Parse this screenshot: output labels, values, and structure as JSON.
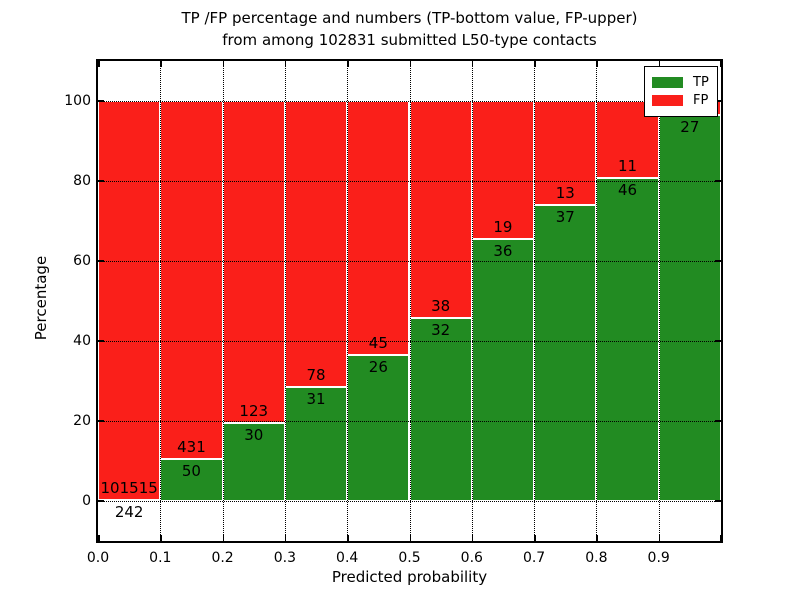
{
  "title": {
    "line1": "TP /FP percentage and numbers (TP-bottom value, FP-upper)",
    "line2": "from among 102831 submitted L50-type contacts"
  },
  "axes": {
    "xlabel": "Predicted probability",
    "ylabel": "Percentage",
    "x_tick_labels": [
      "0.0",
      "0.1",
      "0.2",
      "0.3",
      "0.4",
      "0.5",
      "0.6",
      "0.7",
      "0.8",
      "0.9"
    ],
    "y_tick_labels": [
      "0",
      "20",
      "40",
      "60",
      "80",
      "100"
    ],
    "y_tick_values": [
      0,
      20,
      40,
      60,
      80,
      100
    ],
    "xlim": [
      0.0,
      1.0
    ],
    "ylim": [
      -10,
      110
    ],
    "grid": true
  },
  "legend": [
    {
      "label": "TP",
      "color": "#228b22"
    },
    {
      "label": "FP",
      "color": "#fa1f1a"
    }
  ],
  "colors": {
    "tp_green": "#228b22",
    "fp_red": "#fa1f1a",
    "spine": "#000000",
    "background": "#ffffff"
  },
  "chart_data": {
    "type": "bar",
    "stacked": true,
    "normalized_to_percent": 100,
    "title": "TP /FP percentage and numbers (TP-bottom value, FP-upper) from among 102831 submitted L50-type contacts",
    "total_contacts": 102831,
    "xlabel": "Predicted probability",
    "ylabel": "Percentage",
    "categories": [
      "0.0-0.1",
      "0.1-0.2",
      "0.2-0.3",
      "0.3-0.4",
      "0.4-0.5",
      "0.5-0.6",
      "0.6-0.7",
      "0.7-0.8",
      "0.8-0.9",
      "0.9-1.0"
    ],
    "series": [
      {
        "name": "TP",
        "values": [
          242,
          50,
          30,
          31,
          26,
          32,
          36,
          37,
          46,
          27
        ]
      },
      {
        "name": "FP",
        "values": [
          101515,
          431,
          123,
          78,
          45,
          38,
          19,
          13,
          11,
          1
        ]
      }
    ],
    "bars": [
      {
        "x0": 0.0,
        "x1": 0.1,
        "tp": 242,
        "fp": 101515,
        "tp_label": "242",
        "fp_label": "101515"
      },
      {
        "x0": 0.1,
        "x1": 0.2,
        "tp": 50,
        "fp": 431,
        "tp_label": "50",
        "fp_label": "431"
      },
      {
        "x0": 0.2,
        "x1": 0.3,
        "tp": 30,
        "fp": 123,
        "tp_label": "30",
        "fp_label": "123"
      },
      {
        "x0": 0.3,
        "x1": 0.4,
        "tp": 31,
        "fp": 78,
        "tp_label": "31",
        "fp_label": "78"
      },
      {
        "x0": 0.4,
        "x1": 0.5,
        "tp": 26,
        "fp": 45,
        "tp_label": "26",
        "fp_label": "45"
      },
      {
        "x0": 0.5,
        "x1": 0.6,
        "tp": 32,
        "fp": 38,
        "tp_label": "32",
        "fp_label": "38"
      },
      {
        "x0": 0.6,
        "x1": 0.7,
        "tp": 36,
        "fp": 19,
        "tp_label": "36",
        "fp_label": "19"
      },
      {
        "x0": 0.7,
        "x1": 0.8,
        "tp": 37,
        "fp": 13,
        "tp_label": "37",
        "fp_label": "13"
      },
      {
        "x0": 0.8,
        "x1": 0.9,
        "tp": 46,
        "fp": 11,
        "tp_label": "46",
        "fp_label": "11"
      },
      {
        "x0": 0.9,
        "x1": 1.0,
        "tp": 27,
        "fp": 1,
        "tp_label": "27",
        "fp_label": ""
      }
    ]
  }
}
